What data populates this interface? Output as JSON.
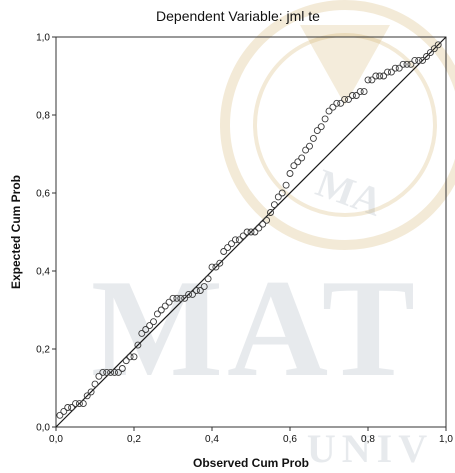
{
  "chart_data": {
    "type": "scatter",
    "title": "Dependent Variable: jml te",
    "xlabel": "Observed Cum Prob",
    "ylabel": "Expected Cum Prob",
    "xlim": [
      0,
      1
    ],
    "ylim": [
      0,
      1
    ],
    "xticks": [
      "0,0",
      "0,2",
      "0,4",
      "0,6",
      "0,8",
      "1,0"
    ],
    "yticks": [
      "0,0",
      "0,2",
      "0,4",
      "0,6",
      "0,8",
      "1,0"
    ],
    "reference_line": [
      [
        0,
        0
      ],
      [
        1,
        1
      ]
    ],
    "grid": false,
    "watermark": {
      "large_letters": "MAT",
      "small_letters": "UNIV",
      "seal_letters": "MA"
    },
    "points": [
      [
        0.01,
        0.03
      ],
      [
        0.02,
        0.04
      ],
      [
        0.03,
        0.05
      ],
      [
        0.04,
        0.05
      ],
      [
        0.05,
        0.06
      ],
      [
        0.06,
        0.06
      ],
      [
        0.07,
        0.06
      ],
      [
        0.08,
        0.08
      ],
      [
        0.09,
        0.09
      ],
      [
        0.1,
        0.11
      ],
      [
        0.11,
        0.13
      ],
      [
        0.12,
        0.14
      ],
      [
        0.13,
        0.14
      ],
      [
        0.14,
        0.14
      ],
      [
        0.15,
        0.14
      ],
      [
        0.16,
        0.14
      ],
      [
        0.17,
        0.15
      ],
      [
        0.18,
        0.17
      ],
      [
        0.19,
        0.18
      ],
      [
        0.2,
        0.18
      ],
      [
        0.21,
        0.21
      ],
      [
        0.22,
        0.24
      ],
      [
        0.23,
        0.25
      ],
      [
        0.24,
        0.26
      ],
      [
        0.25,
        0.27
      ],
      [
        0.26,
        0.29
      ],
      [
        0.27,
        0.3
      ],
      [
        0.28,
        0.31
      ],
      [
        0.29,
        0.32
      ],
      [
        0.3,
        0.33
      ],
      [
        0.31,
        0.33
      ],
      [
        0.32,
        0.33
      ],
      [
        0.33,
        0.33
      ],
      [
        0.34,
        0.34
      ],
      [
        0.35,
        0.34
      ],
      [
        0.36,
        0.35
      ],
      [
        0.37,
        0.35
      ],
      [
        0.38,
        0.36
      ],
      [
        0.39,
        0.38
      ],
      [
        0.4,
        0.41
      ],
      [
        0.41,
        0.41
      ],
      [
        0.42,
        0.42
      ],
      [
        0.43,
        0.45
      ],
      [
        0.44,
        0.46
      ],
      [
        0.45,
        0.47
      ],
      [
        0.46,
        0.48
      ],
      [
        0.47,
        0.48
      ],
      [
        0.48,
        0.49
      ],
      [
        0.49,
        0.5
      ],
      [
        0.5,
        0.5
      ],
      [
        0.51,
        0.5
      ],
      [
        0.52,
        0.51
      ],
      [
        0.53,
        0.52
      ],
      [
        0.54,
        0.53
      ],
      [
        0.55,
        0.55
      ],
      [
        0.56,
        0.57
      ],
      [
        0.57,
        0.59
      ],
      [
        0.58,
        0.6
      ],
      [
        0.59,
        0.62
      ],
      [
        0.6,
        0.65
      ],
      [
        0.61,
        0.67
      ],
      [
        0.62,
        0.68
      ],
      [
        0.63,
        0.69
      ],
      [
        0.64,
        0.71
      ],
      [
        0.65,
        0.72
      ],
      [
        0.66,
        0.74
      ],
      [
        0.67,
        0.76
      ],
      [
        0.68,
        0.77
      ],
      [
        0.69,
        0.79
      ],
      [
        0.7,
        0.81
      ],
      [
        0.71,
        0.82
      ],
      [
        0.72,
        0.83
      ],
      [
        0.73,
        0.83
      ],
      [
        0.74,
        0.84
      ],
      [
        0.75,
        0.84
      ],
      [
        0.76,
        0.85
      ],
      [
        0.77,
        0.85
      ],
      [
        0.78,
        0.86
      ],
      [
        0.79,
        0.86
      ],
      [
        0.8,
        0.89
      ],
      [
        0.81,
        0.89
      ],
      [
        0.82,
        0.9
      ],
      [
        0.83,
        0.9
      ],
      [
        0.84,
        0.9
      ],
      [
        0.85,
        0.91
      ],
      [
        0.86,
        0.91
      ],
      [
        0.87,
        0.92
      ],
      [
        0.88,
        0.92
      ],
      [
        0.89,
        0.93
      ],
      [
        0.9,
        0.93
      ],
      [
        0.91,
        0.93
      ],
      [
        0.92,
        0.94
      ],
      [
        0.93,
        0.94
      ],
      [
        0.94,
        0.94
      ],
      [
        0.95,
        0.95
      ],
      [
        0.96,
        0.96
      ],
      [
        0.97,
        0.97
      ],
      [
        0.98,
        0.98
      ]
    ]
  }
}
